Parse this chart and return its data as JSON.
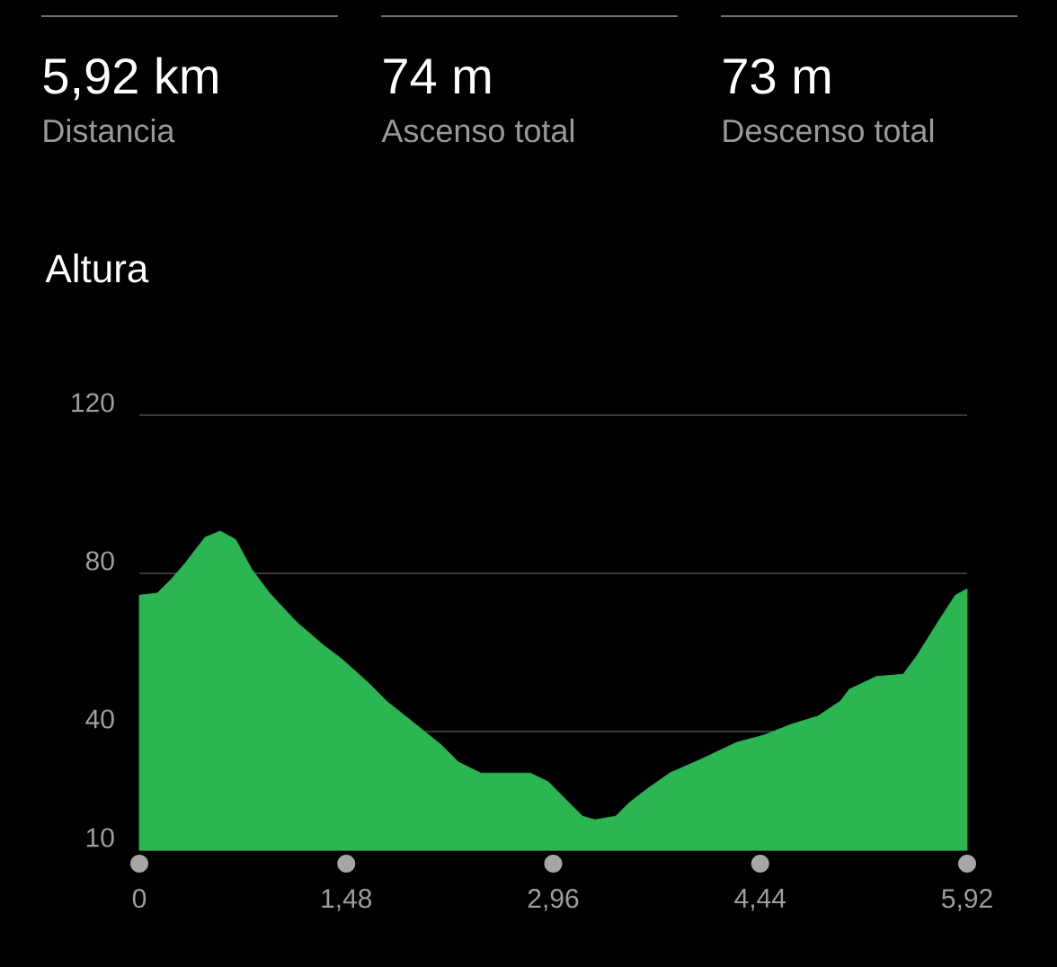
{
  "chart_data": {
    "type": "area",
    "title": "Altura",
    "annotations": [
      "5,92 km",
      "Distancia",
      "74 m",
      "Ascenso total",
      "73 m",
      "Descenso total"
    ],
    "x": [
      0,
      0.129,
      0.225,
      0.321,
      0.469,
      0.578,
      0.688,
      0.803,
      0.932,
      1.125,
      1.318,
      1.446,
      1.639,
      1.768,
      1.928,
      2.153,
      2.282,
      2.442,
      2.603,
      2.796,
      2.925,
      3.053,
      3.169,
      3.259,
      3.407,
      3.503,
      3.632,
      3.792,
      4.017,
      4.274,
      4.467,
      4.66,
      4.853,
      5.013,
      5.078,
      5.27,
      5.463,
      5.559,
      5.72,
      5.836,
      5.92
    ],
    "values": [
      74.5,
      75,
      78.4,
      82.3,
      89.1,
      90.7,
      88.6,
      81.1,
      75,
      67.7,
      61.8,
      58.4,
      52.3,
      47.7,
      43.2,
      36.8,
      32.3,
      29.5,
      29.5,
      29.5,
      27.3,
      22.7,
      18.6,
      17.7,
      18.6,
      22,
      25.5,
      29.5,
      33,
      37.3,
      39.1,
      41.8,
      43.9,
      47.7,
      50.7,
      53.9,
      54.5,
      59.1,
      68.2,
      74.5,
      76.1
    ],
    "color": "#2bb553",
    "xlim": [
      0,
      5.92
    ],
    "ylim": [
      10,
      120
    ],
    "xticks": [
      0,
      {
        "value": 1.48,
        "label": "1,48"
      },
      {
        "value": 2.96,
        "label": "2,96"
      },
      {
        "value": 4.44,
        "label": "4,44"
      },
      {
        "value": 5.92,
        "label": "5,92"
      }
    ],
    "yticks": [
      10,
      40,
      80,
      120
    ],
    "grid": "y"
  }
}
